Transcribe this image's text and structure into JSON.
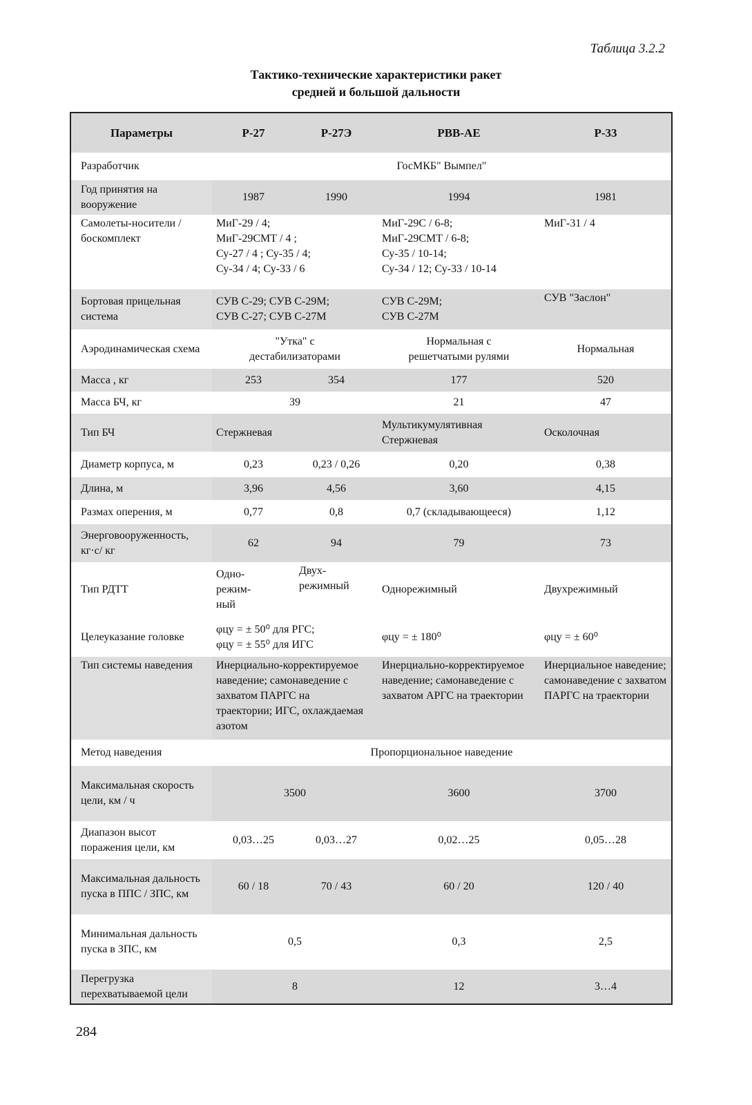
{
  "table_number": "Таблица 3.2.2",
  "title_line1": "Тактико-технические характеристики ракет",
  "title_line2": "средней и большой дальности",
  "columns": [
    "Параметры",
    "Р-27",
    "Р-27Э",
    "РВВ-АЕ",
    "Р-33"
  ],
  "rows": {
    "developer": {
      "label": "Разработчик",
      "all": "ГосМКБ\" Вымпел\""
    },
    "year": {
      "label": "Год принятия на вооружение",
      "r27": "1987",
      "r27e": "1990",
      "rvv": "1994",
      "r33": "1981"
    },
    "carriers": {
      "label": "Самолеты-носители / боскомплект",
      "r27_lines": [
        "МиГ-29 / 4;",
        "МиГ-29СМТ / 4 ;",
        "Су-27 / 4 ; Су-35 / 4;",
        "Су-34 / 4; Су-33 / 6"
      ],
      "rvv_lines": [
        "МиГ-29С / 6-8;",
        "МиГ-29СМТ / 6-8;",
        "Су-35 / 10-14;",
        "Су-34 / 12; Су-33 / 10-14"
      ],
      "r33": "МиГ-31 / 4"
    },
    "sight": {
      "label": "Бортовая прицельная система",
      "r27_lines": [
        "СУВ С-29; СУВ С-29М;",
        "СУВ С-27; СУВ С-27М"
      ],
      "rvv_lines": [
        "СУВ С-29М;",
        "СУВ С-27М"
      ],
      "r33": "СУВ \"Заслон\""
    },
    "aero": {
      "label": "Аэродинамическая схема",
      "r27_lines": [
        "\"Утка\" с",
        "дестабилизаторами"
      ],
      "rvv_lines": [
        "Нормальная с",
        "решетчатыми рулями"
      ],
      "r33": "Нормальная"
    },
    "mass": {
      "label": "Масса , кг",
      "r27": "253",
      "r27e": "354",
      "rvv": "177",
      "r33": "520"
    },
    "warhead_mass": {
      "label": "Масса БЧ, кг",
      "r27": "39",
      "rvv": "21",
      "r33": "47"
    },
    "warhead_type": {
      "label": "Тип БЧ",
      "r27": "Стержневая",
      "rvv_lines": [
        "Мультикумулятивная",
        "Стержневая"
      ],
      "r33": "Осколочная"
    },
    "diameter": {
      "label": "Диаметр корпуса, м",
      "r27": "0,23",
      "r27e": "0,23 / 0,26",
      "rvv": "0,20",
      "r33": "0,38"
    },
    "length": {
      "label": "Длина, м",
      "r27": "3,96",
      "r27e": "4,56",
      "rvv": "3,60",
      "r33": "4,15"
    },
    "span": {
      "label": "Размах оперения, м",
      "r27": "0,77",
      "r27e": "0,8",
      "rvv": "0,7 (складывающееся)",
      "r33": "1,12"
    },
    "thrust": {
      "label": "Энерговооруженность, кг·с/ кг",
      "r27": "62",
      "r27e": "94",
      "rvv": "79",
      "r33": "73"
    },
    "motor": {
      "label": "Тип РДТТ",
      "r27_lines": [
        "Одно-",
        "режим-",
        "ный"
      ],
      "r27e_lines": [
        "Двух-",
        "режимный"
      ],
      "rvv": "Однорежимный",
      "r33": "Двухрежимный"
    },
    "designation": {
      "label": "Целеуказание головке",
      "r27_lines": [
        "φцу = ± 50⁰ для РГС;",
        "φцу = ± 55⁰ для ИГС"
      ],
      "rvv": "φцу = ± 180⁰",
      "r33": "φцу = ± 60⁰"
    },
    "guidance_type": {
      "label": "Тип системы наведения",
      "r27": "Инерциально-корректируемое наведение; самонаведение с захватом ПАРГС на траектории; ИГС, охлаждаемая азотом",
      "rvv": "Инерциально-корректируемое наведение; самонаведение с захватом АРГС на траектории",
      "r33": "Инерциальное наведение; самонаведение с захватом ПАРГС на траектории"
    },
    "guidance_method": {
      "label": "Метод наведения",
      "all": "Пропорциональное наведение"
    },
    "target_speed": {
      "label": "Максимальная скорость цели, км / ч",
      "r27": "3500",
      "rvv": "3600",
      "r33": "3700"
    },
    "altitude": {
      "label": "Диапазон высот поражения цели, км",
      "r27": "0,03…25",
      "r27e": "0,03…27",
      "rvv": "0,02…25",
      "r33": "0,05…28"
    },
    "max_range": {
      "label": "Максимальная дальность пуска в ППС / ЗПС, км",
      "r27": "60 / 18",
      "r27e": "70 / 43",
      "rvv": "60 / 20",
      "r33": "120 / 40"
    },
    "min_range": {
      "label": "Минимальная дальность пуска в ЗПС, км",
      "r27": "0,5",
      "rvv": "0,3",
      "r33": "2,5"
    },
    "overload": {
      "label": "Перегрузка перехватываемой цели",
      "r27": "8",
      "rvv": "12",
      "r33": "3…4"
    }
  },
  "page_number": "284"
}
